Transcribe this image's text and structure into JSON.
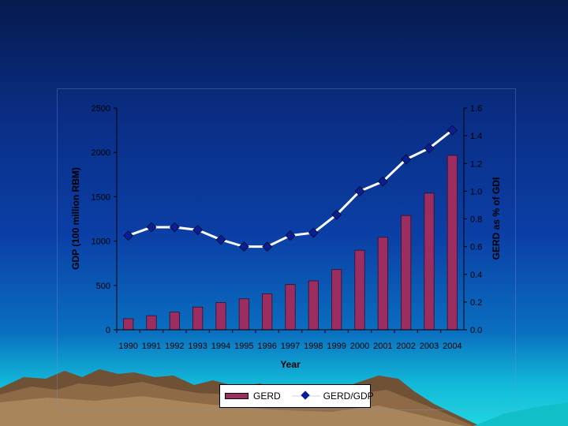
{
  "colors": {
    "bar": "#9b2d61",
    "bar_border": "#3a0d24",
    "line": "#ffffff",
    "marker": "#0a1e96",
    "axis_text": "#000000"
  },
  "chart_data": {
    "type": "bar",
    "combo": "bar + line (secondary axis)",
    "title": "",
    "xlabel": "Year",
    "ylabel": "GDP (100 million RBM)",
    "ylabel_right": "GERD as % of GDI",
    "categories": [
      "1990",
      "1991",
      "1992",
      "1993",
      "1994",
      "1995",
      "1996",
      "1997",
      "1998",
      "1999",
      "2000",
      "2001",
      "2002",
      "2003",
      "2004"
    ],
    "series": [
      {
        "name": "GERD",
        "type": "bar",
        "axis": "left",
        "values": [
          125,
          159,
          199,
          256,
          307,
          349,
          405,
          510,
          551,
          679,
          896,
          1043,
          1288,
          1540,
          1966
        ]
      },
      {
        "name": "GERD/GDP",
        "type": "line",
        "axis": "right",
        "values": [
          0.68,
          0.74,
          0.74,
          0.72,
          0.65,
          0.6,
          0.6,
          0.68,
          0.7,
          0.83,
          1.0,
          1.07,
          1.23,
          1.31,
          1.44
        ]
      }
    ],
    "ylim": [
      0,
      2500
    ],
    "yticks": [
      "0",
      "500",
      "1000",
      "1500",
      "2000",
      "2500"
    ],
    "ylim_right": [
      0,
      1.6
    ],
    "yticks_right": [
      "0.0",
      "0.2",
      "0.4",
      "0.6",
      "0.8",
      "1.0",
      "1.2",
      "1.4",
      "1.6"
    ],
    "legend_position": "bottom",
    "grid": false
  }
}
